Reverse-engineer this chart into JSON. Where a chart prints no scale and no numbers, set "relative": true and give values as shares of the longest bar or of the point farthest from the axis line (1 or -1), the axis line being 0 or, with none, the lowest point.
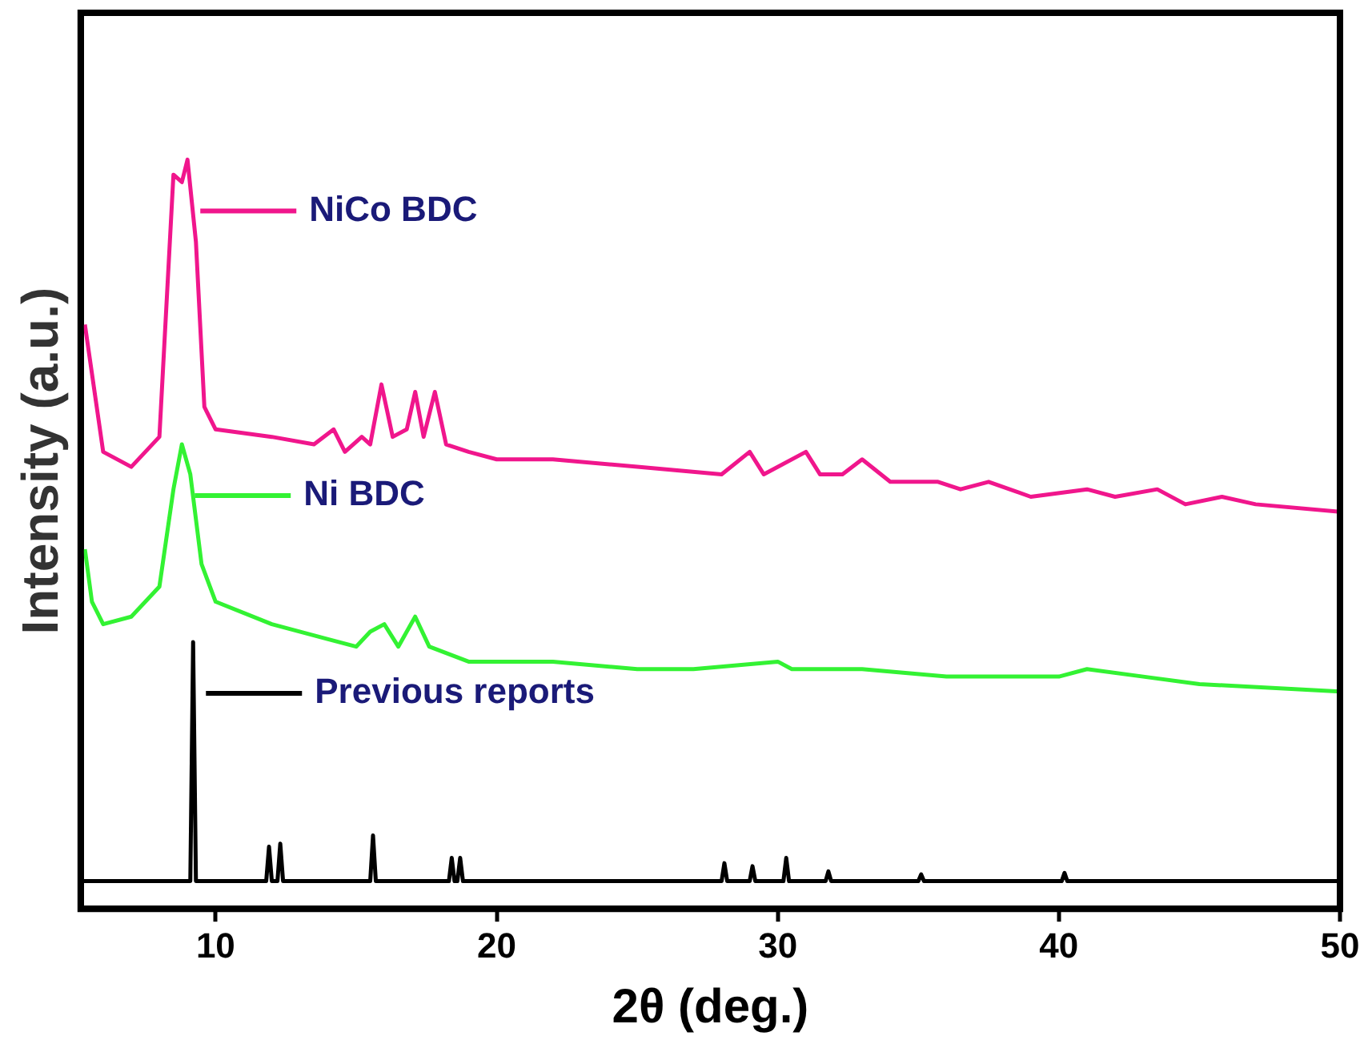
{
  "chart_data": {
    "type": "line",
    "xlabel": "2θ (deg.)",
    "ylabel": "Intensity (a.u.)",
    "relative": true,
    "xlim": [
      5.2,
      50
    ],
    "xticks": [
      10,
      20,
      30,
      40,
      50
    ],
    "tick_labels": "x",
    "grid": false,
    "legend": "top left",
    "marker": "none",
    "series": [
      {
        "name": "NiCo BDC",
        "color": "#f0168c",
        "x": [
          5.35,
          6,
          7,
          8,
          8.5,
          8.8,
          9.0,
          9.3,
          9.6,
          10,
          12,
          13.5,
          14.2,
          14.6,
          15.2,
          15.5,
          15.9,
          16.3,
          16.8,
          17.1,
          17.4,
          17.8,
          18.2,
          19,
          20,
          22,
          25,
          28,
          29,
          29.5,
          31,
          31.5,
          32.3,
          33,
          34,
          35.7,
          36.5,
          37.5,
          39,
          41,
          42,
          43.5,
          44.5,
          45.8,
          47,
          50
        ],
        "values": [
          0.78,
          0.61,
          0.59,
          0.63,
          0.98,
          0.97,
          1.0,
          0.89,
          0.67,
          0.64,
          0.63,
          0.62,
          0.64,
          0.61,
          0.63,
          0.62,
          0.7,
          0.63,
          0.64,
          0.69,
          0.63,
          0.69,
          0.62,
          0.61,
          0.6,
          0.6,
          0.59,
          0.58,
          0.61,
          0.58,
          0.61,
          0.58,
          0.58,
          0.6,
          0.57,
          0.57,
          0.56,
          0.57,
          0.55,
          0.56,
          0.55,
          0.56,
          0.54,
          0.55,
          0.54,
          0.53
        ]
      },
      {
        "name": "Ni BDC",
        "color": "#33f233",
        "x": [
          5.35,
          5.6,
          6,
          7,
          8,
          8.5,
          8.8,
          9.1,
          9.5,
          10,
          12,
          14,
          15,
          15.5,
          16,
          16.5,
          17.1,
          17.6,
          19,
          22,
          25,
          27,
          30,
          30.5,
          33,
          36,
          40,
          41,
          43,
          45,
          50
        ],
        "values": [
          0.48,
          0.41,
          0.38,
          0.39,
          0.43,
          0.56,
          0.62,
          0.58,
          0.46,
          0.41,
          0.38,
          0.36,
          0.35,
          0.37,
          0.38,
          0.35,
          0.39,
          0.35,
          0.33,
          0.33,
          0.32,
          0.32,
          0.33,
          0.32,
          0.32,
          0.31,
          0.31,
          0.32,
          0.31,
          0.3,
          0.29
        ]
      },
      {
        "name": "Previous reports",
        "color": "#000000",
        "x": [
          5.2,
          9.1,
          9.2,
          9.3,
          11.8,
          11.9,
          12.0,
          12.2,
          12.3,
          12.4,
          15.5,
          15.6,
          15.7,
          18.3,
          18.4,
          18.5,
          18.6,
          18.7,
          18.8,
          28.0,
          28.1,
          28.2,
          29.0,
          29.1,
          29.2,
          30.2,
          30.3,
          30.4,
          31.7,
          31.8,
          31.9,
          35.0,
          35.1,
          35.2,
          40.1,
          40.2,
          40.3,
          50
        ],
        "values": [
          0.037,
          0.037,
          0.356,
          0.037,
          0.037,
          0.083,
          0.037,
          0.037,
          0.087,
          0.037,
          0.037,
          0.098,
          0.037,
          0.037,
          0.068,
          0.037,
          0.037,
          0.068,
          0.037,
          0.037,
          0.061,
          0.037,
          0.037,
          0.057,
          0.037,
          0.037,
          0.068,
          0.037,
          0.037,
          0.05,
          0.037,
          0.037,
          0.046,
          0.037,
          0.037,
          0.048,
          0.037,
          0.037
        ]
      }
    ]
  }
}
